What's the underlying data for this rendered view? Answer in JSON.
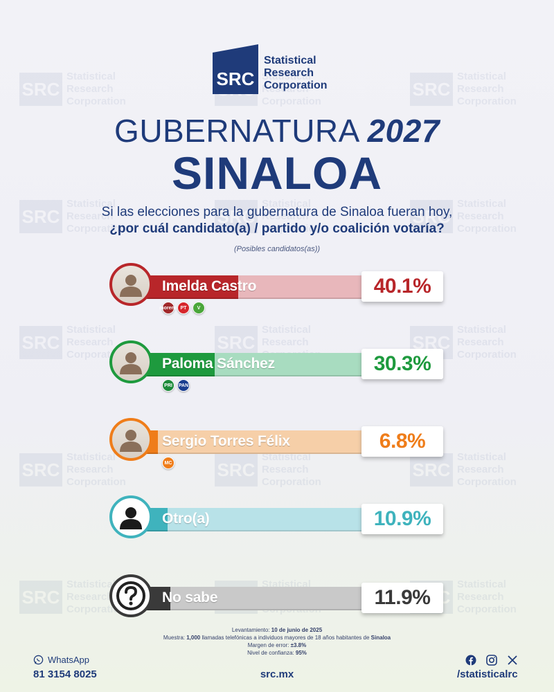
{
  "logo": {
    "box_text": "SRC",
    "line1": "Statistical",
    "line2": "Research",
    "line3": "Corporation"
  },
  "header": {
    "title_word": "GUBERNATURA",
    "title_year": "2027",
    "state": "SINALOA",
    "question_line1": "Si las elecciones para la gubernatura de Sinaloa fueran hoy,",
    "question_line2": "¿por cuál candidato(a) / partido y/o coalición votaría?",
    "note": "(Posibles candidatos(as))"
  },
  "chart_data": {
    "type": "bar",
    "categories": [
      "Imelda Castro",
      "Paloma Sánchez",
      "Sergio Torres Félix",
      "Otro(a)",
      "No sabe"
    ],
    "values": [
      40.1,
      30.3,
      6.8,
      10.9,
      11.9
    ],
    "value_labels": [
      "40.1%",
      "30.3%",
      "6.8%",
      "10.9%",
      "11.9%"
    ],
    "colors": [
      "#b8262a",
      "#1e9a3e",
      "#ef7d1a",
      "#3fb3bd",
      "#3a3a3a"
    ],
    "track_colors": [
      "#e8b7bb",
      "#a8dcc0",
      "#f6cfa8",
      "#b8e2e8",
      "#c9c9c9"
    ],
    "parties": [
      [
        {
          "label": "morena",
          "color": "#a0282a"
        },
        {
          "label": "PT",
          "color": "#d6262c"
        },
        {
          "label": "V",
          "color": "#4aa63a"
        }
      ],
      [
        {
          "label": "PRI",
          "color": "#1d8a3a"
        },
        {
          "label": "PAN",
          "color": "#1a3d8f"
        }
      ],
      [
        {
          "label": "MC",
          "color": "#ef7d1a"
        }
      ],
      [],
      []
    ],
    "avatar_icons": [
      "person-photo-icon",
      "person-photo-icon",
      "person-photo-icon",
      "user-silhouette-icon",
      "question-mark-icon"
    ],
    "xlim": [
      0,
      100
    ]
  },
  "footer": {
    "fieldwork_label": "Levantamiento:",
    "fieldwork_value": "10 de junio de 2025",
    "sample_pre": "Muestra:",
    "sample_n": "1,000",
    "sample_mid": "llamadas telefónicas a individuos mayores de 18 años habitantes de",
    "sample_state": "Sinaloa",
    "margin_label": "Margen de error:",
    "margin_value": "±3.8%",
    "confidence_label": "Nivel de confianza:",
    "confidence_value": "95%",
    "whatsapp_label": "WhatsApp",
    "phone": "81 3154 8025",
    "site": "src.mx",
    "handle": "/statisticalrc",
    "social_icons": [
      "facebook-icon",
      "instagram-icon",
      "x-icon"
    ]
  }
}
